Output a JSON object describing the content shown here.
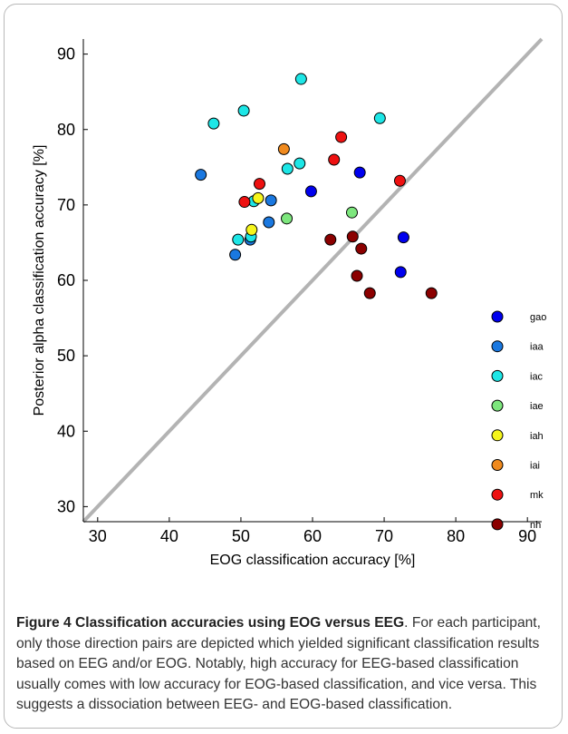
{
  "figure": {
    "number": "Figure 4",
    "title": "Classification accuracies using EOG versus EEG",
    "caption": ". For each participant, only those direction pairs are depicted which yielded significant classification results based on EEG and/or EOG. Notably, high accuracy for EEG-based classification usually comes with low accuracy for EOG-based classification, and vice versa. This suggests a dissociation between EEG- and EOG-based classification."
  },
  "chart_data": {
    "type": "scatter",
    "xlabel": "EOG classification accuracy [%]",
    "ylabel": "Posterior alpha classification accuracy [%]",
    "xlim": [
      28,
      92
    ],
    "ylim": [
      28,
      92
    ],
    "xticks": [
      30,
      40,
      50,
      60,
      70,
      80,
      90
    ],
    "yticks": [
      30,
      40,
      50,
      60,
      70,
      80,
      90
    ],
    "grid": false,
    "legend_position": "right",
    "diagonal": {
      "from": [
        28,
        28
      ],
      "to": [
        92,
        92
      ],
      "color": "#b3b3b3"
    },
    "series": [
      {
        "name": "gao",
        "color": "#0000ee",
        "points": [
          [
            66.6,
            74.3
          ],
          [
            59.8,
            71.8
          ],
          [
            72.7,
            65.7
          ],
          [
            72.3,
            61.1
          ]
        ]
      },
      {
        "name": "iaa",
        "color": "#1a78e0",
        "points": [
          [
            44.4,
            74.0
          ],
          [
            54.2,
            70.6
          ],
          [
            53.9,
            67.7
          ],
          [
            51.3,
            65.4
          ],
          [
            49.2,
            63.4
          ]
        ]
      },
      {
        "name": "iac",
        "color": "#1de6e6",
        "points": [
          [
            46.2,
            80.8
          ],
          [
            50.4,
            82.5
          ],
          [
            58.4,
            86.7
          ],
          [
            69.4,
            81.5
          ],
          [
            58.2,
            75.5
          ],
          [
            56.5,
            74.8
          ],
          [
            51.8,
            70.5
          ],
          [
            49.6,
            65.4
          ],
          [
            51.4,
            65.8
          ]
        ]
      },
      {
        "name": "iae",
        "color": "#7de67d",
        "points": [
          [
            56.4,
            68.2
          ],
          [
            65.5,
            69.0
          ]
        ]
      },
      {
        "name": "iah",
        "color": "#f5f51c",
        "points": [
          [
            52.4,
            70.9
          ],
          [
            51.5,
            66.7
          ]
        ]
      },
      {
        "name": "iai",
        "color": "#f08a1e",
        "points": [
          [
            56.0,
            77.4
          ]
        ]
      },
      {
        "name": "mk",
        "color": "#ee1111",
        "points": [
          [
            64.0,
            79.0
          ],
          [
            63.0,
            76.0
          ],
          [
            72.2,
            73.2
          ],
          [
            52.6,
            72.8
          ],
          [
            50.5,
            70.4
          ]
        ]
      },
      {
        "name": "nh",
        "color": "#8b0000",
        "points": [
          [
            62.5,
            65.4
          ],
          [
            65.6,
            65.8
          ],
          [
            66.8,
            64.2
          ],
          [
            66.2,
            60.6
          ],
          [
            68.0,
            58.3
          ],
          [
            76.6,
            58.3
          ]
        ]
      }
    ]
  }
}
